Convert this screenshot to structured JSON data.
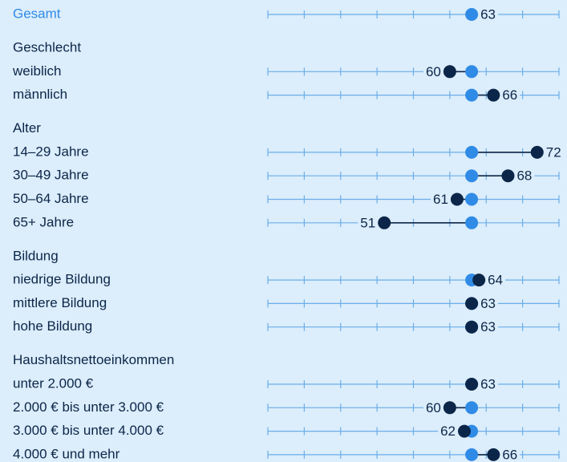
{
  "chart_data": {
    "type": "dotplot",
    "xlim": [
      35,
      75
    ],
    "xticks": [
      35,
      40,
      45,
      50,
      55,
      60,
      65,
      70,
      75
    ],
    "overall": {
      "label": "Gesamt",
      "value": 63,
      "color": "#2f8be6"
    },
    "color": "#0b2648",
    "groups": [
      {
        "title": "Geschlecht",
        "rows": [
          {
            "label": "weiblich",
            "value": 60
          },
          {
            "label": "männlich",
            "value": 66
          }
        ]
      },
      {
        "title": "Alter",
        "rows": [
          {
            "label": "14–29 Jahre",
            "value": 72
          },
          {
            "label": "30–49 Jahre",
            "value": 68
          },
          {
            "label": "50–64 Jahre",
            "value": 61
          },
          {
            "label": "65+ Jahre",
            "value": 51
          }
        ]
      },
      {
        "title": "Bildung",
        "rows": [
          {
            "label": "niedrige Bildung",
            "value": 64
          },
          {
            "label": "mittlere Bildung",
            "value": 63
          },
          {
            "label": "hohe Bildung",
            "value": 63
          }
        ]
      },
      {
        "title": "Haushaltsnettoeinkommen",
        "rows": [
          {
            "label": "unter 2.000 €",
            "value": 63
          },
          {
            "label": "2.000 € bis unter 3.000 €",
            "value": 60
          },
          {
            "label": "3.000 € bis unter 4.000 €",
            "value": 62
          },
          {
            "label": "4.000 € und mehr",
            "value": 66
          }
        ]
      }
    ]
  }
}
